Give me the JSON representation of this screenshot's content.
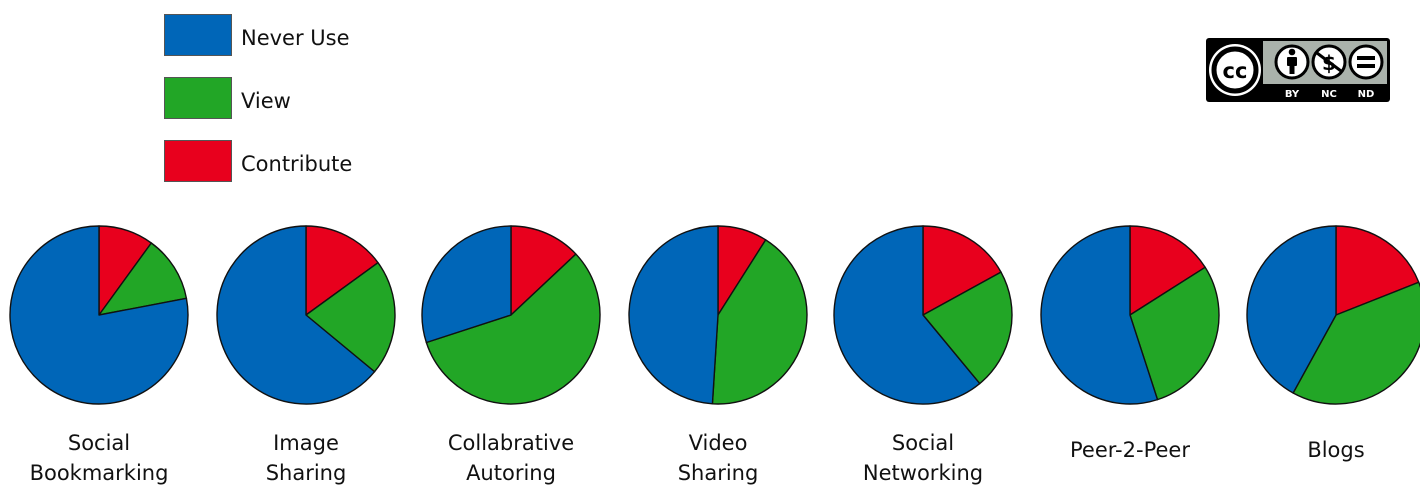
{
  "colors": {
    "never_use": "#0066b8",
    "view": "#22a626",
    "contribute": "#e8001d"
  },
  "badge": {
    "icon": "creative-commons-license-icon",
    "cc": "cc",
    "terms": [
      "BY",
      "NC",
      "ND"
    ]
  },
  "chart_data": {
    "type": "pie",
    "legend": {
      "placement": "top-left",
      "entries": [
        "Never Use",
        "View",
        "Contribute"
      ]
    },
    "slice_order": [
      "Contribute",
      "View",
      "Never Use"
    ],
    "pies": [
      {
        "label_lines": [
          "Social",
          "Bookmarking"
        ],
        "values": {
          "Contribute": 10,
          "View": 12,
          "Never Use": 78
        }
      },
      {
        "label_lines": [
          "Image",
          "Sharing"
        ],
        "values": {
          "Contribute": 15,
          "View": 21,
          "Never Use": 64
        }
      },
      {
        "label_lines": [
          "Collabrative",
          "Autoring"
        ],
        "values": {
          "Contribute": 13,
          "View": 57,
          "Never Use": 30
        }
      },
      {
        "label_lines": [
          "Video",
          "Sharing"
        ],
        "values": {
          "Contribute": 9,
          "View": 42,
          "Never Use": 49
        }
      },
      {
        "label_lines": [
          "Social",
          "Networking"
        ],
        "values": {
          "Contribute": 17,
          "View": 22,
          "Never Use": 61
        }
      },
      {
        "label_lines": [
          "Peer-2-Peer"
        ],
        "values": {
          "Contribute": 16,
          "View": 29,
          "Never Use": 55
        }
      },
      {
        "label_lines": [
          "Blogs"
        ],
        "values": {
          "Contribute": 19,
          "View": 39,
          "Never Use": 42
        }
      }
    ]
  }
}
